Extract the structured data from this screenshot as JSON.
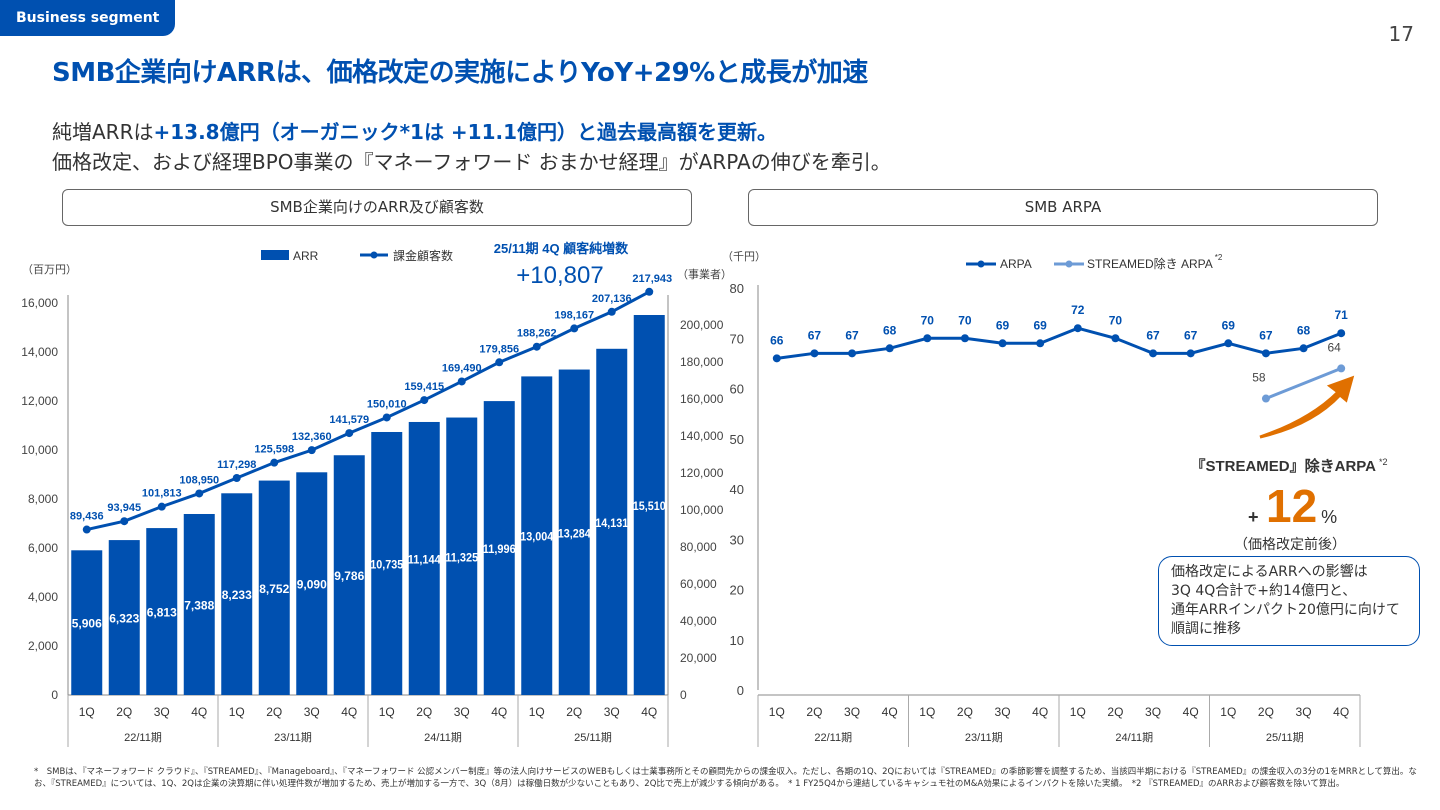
{
  "header": {
    "segment": "Business segment",
    "page": "17",
    "title": "SMB企業向けARRは、価格改定の実施によりYoY+29%と成長が加速",
    "sub1_a": "純増ARRは",
    "sub1_b": "+13.8億円（オーガニック*1は +11.1億円）",
    "sub1_c": "と過去最高額を更新。",
    "sub2": "価格改定、および経理BPO事業の『マネーフォワード おまかせ経理』がARPAの伸びを牽引。"
  },
  "panels": {
    "left": "SMB企業向けのARR及び顧客数",
    "right": "SMB ARPA"
  },
  "chart_data": [
    {
      "type": "bar+line",
      "yunit": "（百万円）",
      "y2unit": "（事業者）",
      "categories": [
        "1Q",
        "2Q",
        "3Q",
        "4Q",
        "1Q",
        "2Q",
        "3Q",
        "4Q",
        "1Q",
        "2Q",
        "3Q",
        "4Q",
        "1Q",
        "2Q",
        "3Q",
        "4Q"
      ],
      "groups": [
        "22/11期",
        "23/11期",
        "24/11期",
        "25/11期"
      ],
      "ylim": [
        0,
        16000
      ],
      "yticks": [
        "0",
        "2,000",
        "4,000",
        "6,000",
        "8,000",
        "10,000",
        "12,000",
        "14,000",
        "16,000"
      ],
      "y2lim": [
        0,
        220000
      ],
      "y2ticks": [
        "0",
        "20,000",
        "40,000",
        "60,000",
        "80,000",
        "100,000",
        "120,000",
        "140,000",
        "160,000",
        "180,000",
        "200,000"
      ],
      "series": [
        {
          "name": "ARR",
          "kind": "bar",
          "color": "#0050b0",
          "values": [
            5906,
            6323,
            6813,
            7388,
            8233,
            8752,
            9090,
            9786,
            10735,
            11144,
            11325,
            11996,
            13004,
            13284,
            14131,
            15510
          ],
          "labels": [
            "5,906",
            "6,323",
            "6,813",
            "7,388",
            "8,233",
            "8,752",
            "9,090",
            "9,786",
            "10,735",
            "11,144",
            "11,325",
            "11,996",
            "13,004",
            "13,284",
            "14,131",
            "15,510"
          ]
        },
        {
          "name": "課金顧客数",
          "kind": "line",
          "axis": "y2",
          "color": "#0050b0",
          "values": [
            89436,
            93945,
            101813,
            108950,
            117298,
            125598,
            132360,
            141579,
            150010,
            159415,
            169490,
            179856,
            188262,
            198167,
            207136,
            217943
          ],
          "labels": [
            "89,436",
            "93,945",
            "101,813",
            "108,950",
            "117,298",
            "125,598",
            "132,360",
            "141,579",
            "150,010",
            "159,415",
            "169,490",
            "179,856",
            "188,262",
            "198,167",
            "207,136",
            "217,943"
          ]
        }
      ],
      "annotation": {
        "label": "25/11期 4Q 顧客純増数",
        "value": "+10,807"
      }
    },
    {
      "type": "line",
      "yunit": "（千円）",
      "ylim": [
        0,
        80
      ],
      "yticks": [
        "0",
        "10",
        "20",
        "30",
        "40",
        "50",
        "60",
        "70",
        "80"
      ],
      "categories": [
        "1Q",
        "2Q",
        "3Q",
        "4Q",
        "1Q",
        "2Q",
        "3Q",
        "4Q",
        "1Q",
        "2Q",
        "3Q",
        "4Q",
        "1Q",
        "2Q",
        "3Q",
        "4Q"
      ],
      "groups": [
        "22/11期",
        "23/11期",
        "24/11期",
        "25/11期"
      ],
      "series": [
        {
          "name": "ARPA",
          "color": "#0050b0",
          "values": [
            66,
            67,
            67,
            68,
            70,
            70,
            69,
            69,
            72,
            70,
            67,
            67,
            69,
            67,
            68,
            71
          ]
        },
        {
          "name": "STREAMED除き ARPA",
          "sup": "*2",
          "color": "#6d9bd6",
          "values": [
            null,
            null,
            null,
            null,
            null,
            null,
            null,
            null,
            null,
            null,
            null,
            null,
            null,
            58,
            null,
            64
          ]
        }
      ],
      "callout": {
        "title": "『STREAMED』除きARPA",
        "sup": "*2",
        "value": "12",
        "prefix": "+",
        "suffix": "%",
        "note": "（価格改定前後）",
        "arrow_color": "#e07000"
      }
    }
  ],
  "note": [
    "価格改定によるARRへの影響は",
    "3Q 4Q合計で+約14億円と、",
    "通年ARRインパクト20億円に向けて",
    "順調に推移"
  ],
  "footnote": "*　SMBは、『マネーフォワード クラウド』、『STREAMED』、『Manageboard』、『マネーフォワード 公認メンバー制度』等の法人向けサービスのWEBもしくは士業事務所とその顧問先からの課金収入。ただし、各期の1Q、2Qにおいては『STREAMED』の季節影響を調整するため、当該四半期における『STREAMED』の課金収入の3分の1をMRRとして算出。なお、『STREAMED』については、1Q、2Qは企業の決算期に伴い処理件数が増加するため、売上が増加する一方で、3Q（8月）は稼働日数が少ないこともあり、2Q比で売上が減少する傾向がある。　* 1 FY25Q4から連結しているキャシュモ社のM&A効果によるインパクトを除いた実績。　*2 『STREAMED』のARRおよび顧客数を除いて算出。"
}
